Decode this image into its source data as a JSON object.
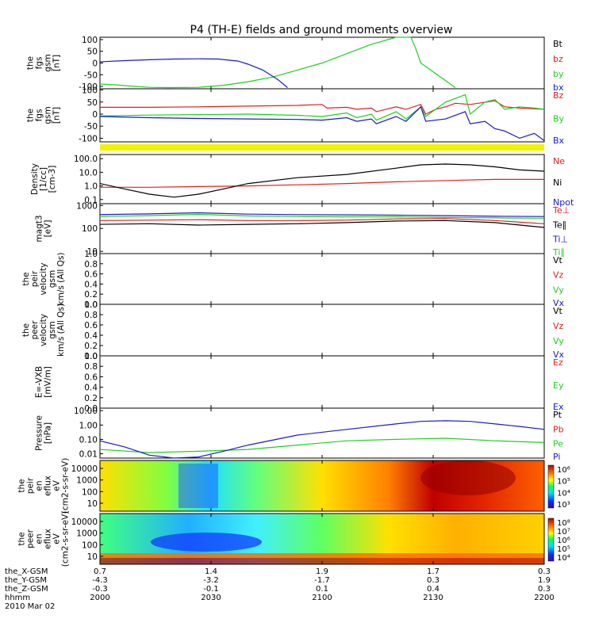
{
  "title": "P4 (TH-E) fields and ground moments overview",
  "colors": {
    "black": "#000000",
    "red": "#e02020",
    "green": "#20d020",
    "blue": "#1a1acc",
    "yellow": "#f2f200"
  },
  "chart_data": [
    {
      "type": "line",
      "id": "fgs",
      "ylabel": [
        "the",
        "fgs",
        "gsm",
        "[nT]"
      ],
      "ylim": [
        -110,
        110
      ],
      "yticks": [
        "100",
        "50",
        "0",
        "-50",
        "-100"
      ],
      "series": [
        {
          "name": "Bt",
          "color": "#000000",
          "x": [],
          "y": []
        },
        {
          "name": "bz",
          "color": "#e02020",
          "x": [],
          "y": []
        },
        {
          "name": "by",
          "color": "#20d020",
          "x": [
            0,
            3,
            6,
            10,
            14,
            20,
            25,
            30,
            35,
            40,
            45,
            50,
            55,
            60,
            63,
            64,
            65,
            72
          ],
          "y": [
            -90,
            -93,
            -98,
            -104,
            -105,
            -104,
            -95,
            -80,
            -60,
            -30,
            0,
            40,
            80,
            118,
            120,
            60,
            0,
            -105
          ]
        },
        {
          "name": "bx",
          "color": "#1a1acc",
          "x": [
            0,
            5,
            10,
            15,
            20,
            24,
            28,
            30,
            33,
            36,
            38
          ],
          "y": [
            5,
            10,
            14,
            17,
            18,
            17,
            8,
            -5,
            -30,
            -70,
            -105
          ]
        }
      ]
    },
    {
      "type": "line",
      "id": "fgs169",
      "ylabel": [
        "the",
        "fgs",
        "gsm",
        "[nT]"
      ],
      "ylim": [
        -115,
        105
      ],
      "yticks": [
        "100",
        "50",
        "0",
        "-50",
        "-100"
      ],
      "series": [
        {
          "name": "Bz",
          "color": "#e02020",
          "x": [
            0,
            10,
            20,
            30,
            40,
            45,
            46,
            50,
            52,
            55,
            56,
            60,
            62,
            65,
            66,
            68,
            70,
            72,
            75,
            80,
            82,
            85,
            90
          ],
          "y": [
            28,
            28,
            30,
            33,
            36,
            40,
            25,
            28,
            20,
            25,
            10,
            30,
            20,
            40,
            0,
            20,
            30,
            45,
            40,
            55,
            30,
            25,
            20
          ]
        },
        {
          "name": "By",
          "color": "#20d020",
          "x": [
            0,
            10,
            20,
            30,
            40,
            45,
            50,
            52,
            55,
            56,
            60,
            62,
            65,
            66,
            70,
            74,
            75,
            78,
            80,
            82,
            85,
            88,
            90
          ],
          "y": [
            -8,
            -4,
            -2,
            0,
            -5,
            -10,
            5,
            -15,
            0,
            -25,
            10,
            -20,
            30,
            -10,
            50,
            80,
            0,
            50,
            60,
            20,
            30,
            25,
            20
          ]
        },
        {
          "name": "Bx",
          "color": "#1a1acc",
          "x": [
            0,
            10,
            20,
            30,
            40,
            45,
            50,
            52,
            55,
            56,
            60,
            62,
            65,
            66,
            70,
            74,
            75,
            78,
            80,
            82,
            85,
            88,
            90
          ],
          "y": [
            -10,
            -15,
            -18,
            -20,
            -22,
            -25,
            -15,
            -30,
            -20,
            -40,
            -10,
            -30,
            30,
            -30,
            -20,
            10,
            -40,
            -30,
            -60,
            -70,
            -100,
            -80,
            -110
          ]
        }
      ]
    },
    {
      "type": "line",
      "id": "density",
      "ylabel": [
        "Density",
        "[1/cc]",
        "[cm-3]"
      ],
      "ylim": [
        0.05,
        200
      ],
      "log": true,
      "yticks": [
        "100.0",
        "10.0",
        "1.0",
        "0.1"
      ],
      "series": [
        {
          "name": "Ne",
          "color": "#e02020",
          "x": [
            0,
            10,
            20,
            30,
            40,
            50,
            60,
            70,
            80,
            90
          ],
          "y": [
            0.8,
            0.8,
            0.9,
            1.0,
            1.2,
            1.5,
            2.0,
            2.5,
            3.0,
            3.0
          ]
        },
        {
          "name": "Ni",
          "color": "#000000",
          "x": [
            0,
            5,
            10,
            15,
            20,
            25,
            30,
            40,
            50,
            60,
            65,
            70,
            75,
            80,
            85,
            90
          ],
          "y": [
            1.5,
            0.6,
            0.25,
            0.15,
            0.25,
            0.6,
            1.5,
            4,
            7,
            20,
            35,
            40,
            35,
            25,
            15,
            12
          ]
        },
        {
          "name": "Npot",
          "color": "#1a1acc",
          "x": [],
          "y": []
        }
      ]
    },
    {
      "type": "line",
      "id": "temps",
      "ylabel": [
        "magt3",
        "[eV]"
      ],
      "ylim": [
        8,
        1200
      ],
      "log": true,
      "yticks": [
        "1000",
        "100",
        "10"
      ],
      "series": [
        {
          "name": "Te⊥",
          "color": "#e02020",
          "x": [
            0,
            10,
            20,
            30,
            40,
            50,
            60,
            70,
            80,
            90
          ],
          "y": [
            220,
            230,
            240,
            220,
            220,
            230,
            260,
            270,
            220,
            160
          ]
        },
        {
          "name": "Te∥",
          "color": "#000000",
          "x": [
            0,
            10,
            20,
            30,
            40,
            50,
            60,
            70,
            80,
            90
          ],
          "y": [
            150,
            160,
            140,
            150,
            160,
            180,
            210,
            220,
            180,
            110
          ]
        },
        {
          "name": "Ti⊥",
          "color": "#1a1acc",
          "x": [
            0,
            10,
            20,
            30,
            40,
            50,
            60,
            70,
            80,
            90
          ],
          "y": [
            400,
            430,
            480,
            420,
            400,
            390,
            380,
            360,
            340,
            330
          ]
        },
        {
          "name": "Ti∥",
          "color": "#20d020",
          "x": [
            0,
            10,
            20,
            30,
            40,
            50,
            60,
            70,
            80,
            90
          ],
          "y": [
            330,
            360,
            410,
            350,
            330,
            320,
            320,
            300,
            290,
            280
          ]
        }
      ]
    },
    {
      "type": "line",
      "id": "peir_v",
      "ylabel": [
        "the",
        "peir",
        "velocity",
        "gsm",
        "km/s (All Qs)"
      ],
      "ylim": [
        0,
        1
      ],
      "yticks": [
        "1.0",
        "0.8",
        "0.6",
        "0.4",
        "0.2",
        "0.0"
      ],
      "series": [
        {
          "name": "Vt",
          "color": "#000000",
          "x": [],
          "y": []
        },
        {
          "name": "Vz",
          "color": "#e02020",
          "x": [],
          "y": []
        },
        {
          "name": "Vy",
          "color": "#20d020",
          "x": [],
          "y": []
        },
        {
          "name": "Vx",
          "color": "#1a1acc",
          "x": [],
          "y": []
        }
      ]
    },
    {
      "type": "line",
      "id": "peer_v",
      "ylabel": [
        "the",
        "peer",
        "velocity",
        "gsm",
        "km/s (All Qs)"
      ],
      "ylim": [
        0,
        1
      ],
      "yticks": [
        "1.0",
        "0.8",
        "0.6",
        "0.4",
        "0.2",
        "0.0"
      ],
      "series": [
        {
          "name": "Vt",
          "color": "#000000",
          "x": [],
          "y": []
        },
        {
          "name": "Vz",
          "color": "#e02020",
          "x": [],
          "y": []
        },
        {
          "name": "Vy",
          "color": "#20d020",
          "x": [],
          "y": []
        },
        {
          "name": "Vx",
          "color": "#1a1acc",
          "x": [],
          "y": []
        }
      ]
    },
    {
      "type": "line",
      "id": "efield",
      "ylabel": [
        "E=-VXB",
        "[mV/m]"
      ],
      "ylim": [
        0,
        1
      ],
      "yticks": [
        "1.0",
        "0.8",
        "0.6",
        "0.4",
        "0.2",
        "0.0"
      ],
      "series": [
        {
          "name": "Ez",
          "color": "#e02020",
          "x": [],
          "y": []
        },
        {
          "name": "Ey",
          "color": "#20d020",
          "x": [],
          "y": []
        },
        {
          "name": "Ex",
          "color": "#1a1acc",
          "x": [],
          "y": []
        }
      ]
    },
    {
      "type": "line",
      "id": "pressure",
      "ylabel": [
        "Pressure",
        "[nPa]"
      ],
      "ylim": [
        0.005,
        15
      ],
      "log": true,
      "yticks": [
        "10.00",
        "1.00",
        "0.10",
        "0.01"
      ],
      "series": [
        {
          "name": "Pt",
          "color": "#000000",
          "x": [],
          "y": []
        },
        {
          "name": "Pb",
          "color": "#e02020",
          "x": [],
          "y": []
        },
        {
          "name": "Pe",
          "color": "#20d020",
          "x": [
            0,
            10,
            20,
            30,
            40,
            50,
            60,
            70,
            80,
            90
          ],
          "y": [
            0.02,
            0.012,
            0.015,
            0.02,
            0.04,
            0.08,
            0.1,
            0.12,
            0.08,
            0.06
          ]
        },
        {
          "name": "Pi",
          "color": "#1a1acc",
          "x": [
            0,
            5,
            10,
            15,
            20,
            25,
            30,
            40,
            50,
            60,
            65,
            70,
            75,
            80,
            85,
            90
          ],
          "y": [
            0.08,
            0.03,
            0.008,
            0.004,
            0.006,
            0.015,
            0.04,
            0.2,
            0.5,
            1.2,
            1.8,
            2.0,
            1.8,
            1.2,
            0.8,
            0.5
          ]
        }
      ]
    },
    {
      "type": "heatmap",
      "id": "peir_en",
      "ylabel": [
        "the",
        "peir",
        "en",
        "eflux",
        "eV",
        "(cm2-s-sr-eV)"
      ],
      "yticks": [
        "10000",
        "1000",
        "100",
        "10"
      ],
      "colorbar": [
        "10⁶",
        "10⁵",
        "10⁴",
        "10³"
      ]
    },
    {
      "type": "heatmap",
      "id": "peer_en",
      "ylabel": [
        "the",
        "peer",
        "en",
        "eflux",
        "eV",
        "(cm2-s-sr-eV)"
      ],
      "yticks": [
        "10000",
        "1000",
        "100",
        "10"
      ],
      "colorbar": [
        "10⁸",
        "10⁷",
        "10⁶",
        "10⁵",
        "10⁴"
      ]
    }
  ],
  "x_axis": {
    "row_labels": [
      "the_X-GSM",
      "the_Y-GSM",
      "the_Z-GSM",
      "hhmm",
      "2010 Mar 02"
    ],
    "columns": [
      [
        "0.7",
        "-4.3",
        "-0.3",
        "2000"
      ],
      [
        "1.4",
        "-3.2",
        "-0.1",
        "2030"
      ],
      [
        "1.9",
        "-1.7",
        "0.1",
        "2100"
      ],
      [
        "1.7",
        "0.3",
        "0.4",
        "2130"
      ],
      [
        "0.3",
        "1.9",
        "0.3",
        "2200"
      ]
    ]
  }
}
